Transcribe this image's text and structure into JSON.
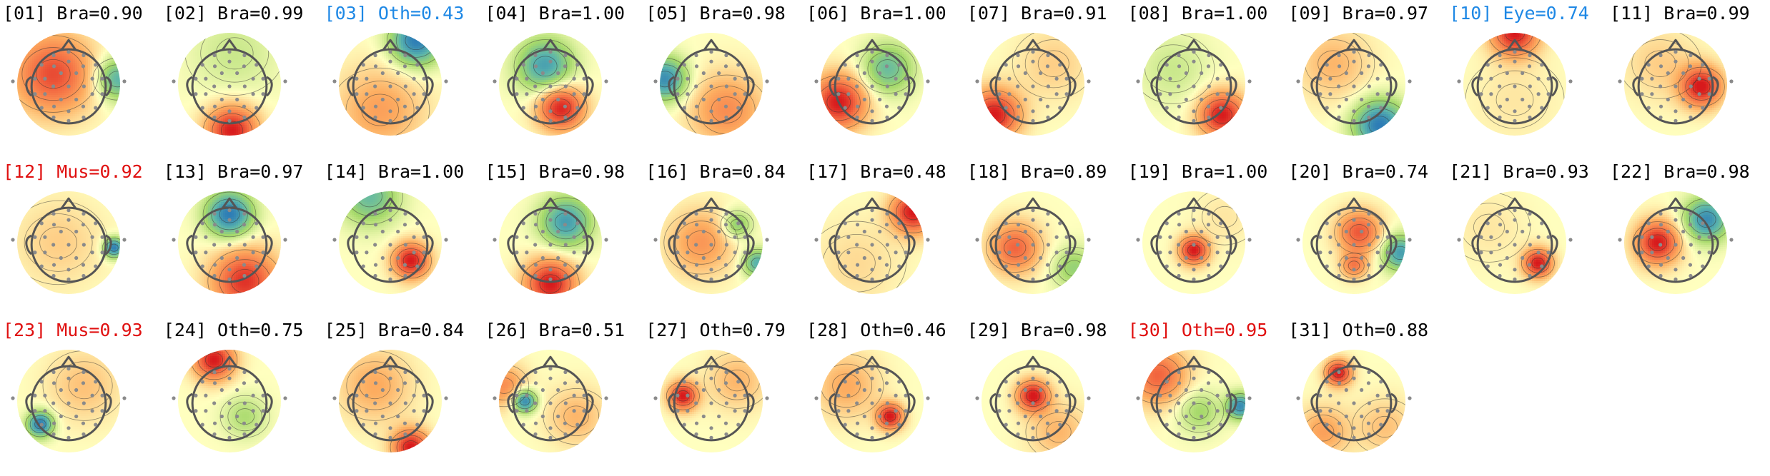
{
  "figure_title": "",
  "colors": {
    "text_default": "#000000",
    "text_flag_red": "#e01010",
    "text_flag_blue": "#1e88e5",
    "head_outline": "#555555",
    "electrode": "#8a8a8a",
    "colormap": [
      "#2c7bb6",
      "#5ab4ac",
      "#a6d96a",
      "#ffffbf",
      "#fdae61",
      "#f46d43",
      "#d7191c"
    ]
  },
  "chart_data": {
    "type": "heatmap",
    "title": "",
    "xlabel": "",
    "ylabel": "",
    "label_format": "[NN] Class=prob",
    "components": [
      {
        "id": "01",
        "label": "[01] Bra=0.90",
        "cls": "Bra",
        "prob": 0.9,
        "flag": "none",
        "blobs": [
          [
            -0.3,
            -0.2,
            0.8,
            0.55
          ],
          [
            0.95,
            -0.1,
            -0.7,
            0.3
          ]
        ]
      },
      {
        "id": "02",
        "label": "[02] Bra=0.99",
        "cls": "Bra",
        "prob": 0.99,
        "flag": "none",
        "blobs": [
          [
            0.05,
            0.9,
            1.0,
            0.35
          ],
          [
            0.1,
            -0.6,
            -0.2,
            0.6
          ]
        ]
      },
      {
        "id": "03",
        "label": "[03] Oth=0.43",
        "cls": "Oth",
        "prob": 0.43,
        "flag": "blue",
        "blobs": [
          [
            0.5,
            -0.85,
            -1.0,
            0.35
          ],
          [
            -0.2,
            0.5,
            0.4,
            0.6
          ]
        ]
      },
      {
        "id": "04",
        "label": "[04] Bra=1.00",
        "cls": "Bra",
        "prob": 1.0,
        "flag": "none",
        "blobs": [
          [
            0.2,
            0.45,
            1.0,
            0.32
          ],
          [
            -0.1,
            -0.35,
            -0.8,
            0.38
          ]
        ]
      },
      {
        "id": "05",
        "label": "[05] Bra=0.98",
        "cls": "Bra",
        "prob": 0.98,
        "flag": "none",
        "blobs": [
          [
            -0.9,
            -0.1,
            -0.9,
            0.3
          ],
          [
            0.3,
            0.5,
            0.5,
            0.5
          ]
        ]
      },
      {
        "id": "06",
        "label": "[06] Bra=1.00",
        "cls": "Bra",
        "prob": 1.0,
        "flag": "none",
        "blobs": [
          [
            -0.65,
            0.35,
            1.0,
            0.38
          ],
          [
            0.3,
            -0.3,
            -0.6,
            0.35
          ]
        ]
      },
      {
        "id": "07",
        "label": "[07] Bra=0.91",
        "cls": "Bra",
        "prob": 0.91,
        "flag": "none",
        "blobs": [
          [
            -0.75,
            0.6,
            1.0,
            0.35
          ],
          [
            0.4,
            -0.4,
            0.2,
            0.5
          ]
        ]
      },
      {
        "id": "08",
        "label": "[08] Bra=1.00",
        "cls": "Bra",
        "prob": 1.0,
        "flag": "none",
        "blobs": [
          [
            0.55,
            0.6,
            1.0,
            0.32
          ],
          [
            -0.4,
            -0.3,
            -0.2,
            0.5
          ]
        ]
      },
      {
        "id": "09",
        "label": "[09] Bra=0.97",
        "cls": "Bra",
        "prob": 0.97,
        "flag": "none",
        "blobs": [
          [
            0.5,
            0.8,
            -1.0,
            0.35
          ],
          [
            -0.4,
            -0.4,
            0.3,
            0.5
          ]
        ]
      },
      {
        "id": "10",
        "label": "[10] Eye=0.74",
        "cls": "Eye",
        "prob": 0.74,
        "flag": "blue",
        "blobs": [
          [
            0.0,
            -1.0,
            1.0,
            0.32
          ],
          [
            0.0,
            0.3,
            0.1,
            0.6
          ]
        ]
      },
      {
        "id": "11",
        "label": "[11] Bra=0.99",
        "cls": "Bra",
        "prob": 0.99,
        "flag": "none",
        "blobs": [
          [
            0.5,
            0.05,
            1.0,
            0.28
          ],
          [
            -0.3,
            -0.4,
            0.2,
            0.5
          ]
        ]
      },
      {
        "id": "12",
        "label": "[12] Mus=0.92",
        "cls": "Mus",
        "prob": 0.92,
        "flag": "red",
        "blobs": [
          [
            0.88,
            0.1,
            -1.0,
            0.14
          ],
          [
            -0.2,
            0.0,
            0.2,
            0.6
          ]
        ]
      },
      {
        "id": "13",
        "label": "[13] Bra=0.97",
        "cls": "Bra",
        "prob": 0.97,
        "flag": "none",
        "blobs": [
          [
            0.0,
            -0.55,
            -1.0,
            0.32
          ],
          [
            0.3,
            0.75,
            0.9,
            0.45
          ]
        ]
      },
      {
        "id": "14",
        "label": "[14] Bra=1.00",
        "cls": "Bra",
        "prob": 1.0,
        "flag": "none",
        "blobs": [
          [
            0.4,
            0.35,
            1.0,
            0.25
          ],
          [
            -0.4,
            -0.9,
            -0.6,
            0.4
          ]
        ]
      },
      {
        "id": "15",
        "label": "[15] Bra=0.98",
        "cls": "Bra",
        "prob": 0.98,
        "flag": "none",
        "blobs": [
          [
            0.0,
            0.8,
            1.0,
            0.35
          ],
          [
            0.3,
            -0.4,
            -0.8,
            0.35
          ]
        ]
      },
      {
        "id": "16",
        "label": "[16] Bra=0.84",
        "cls": "Bra",
        "prob": 0.84,
        "flag": "none",
        "blobs": [
          [
            0.9,
            0.4,
            -0.7,
            0.2
          ],
          [
            -0.2,
            0.0,
            0.45,
            0.45
          ],
          [
            0.5,
            -0.35,
            -0.5,
            0.2
          ]
        ]
      },
      {
        "id": "17",
        "label": "[17] Bra=0.48",
        "cls": "Bra",
        "prob": 0.48,
        "flag": "none",
        "blobs": [
          [
            0.8,
            -0.6,
            1.0,
            0.3
          ],
          [
            -0.3,
            0.4,
            0.15,
            0.6
          ]
        ]
      },
      {
        "id": "18",
        "label": "[18] Bra=0.89",
        "cls": "Bra",
        "prob": 0.89,
        "flag": "none",
        "blobs": [
          [
            -0.35,
            0.1,
            0.7,
            0.35
          ],
          [
            0.8,
            0.5,
            -0.4,
            0.3
          ]
        ]
      },
      {
        "id": "19",
        "label": "[19] Bra=1.00",
        "cls": "Bra",
        "prob": 1.0,
        "flag": "none",
        "blobs": [
          [
            0.0,
            0.15,
            1.0,
            0.2
          ],
          [
            0.6,
            -0.5,
            0.1,
            0.4
          ]
        ]
      },
      {
        "id": "20",
        "label": "[20] Bra=0.74",
        "cls": "Bra",
        "prob": 0.74,
        "flag": "none",
        "blobs": [
          [
            0.1,
            -0.2,
            0.75,
            0.3
          ],
          [
            0.0,
            0.45,
            0.55,
            0.18
          ],
          [
            0.9,
            0.2,
            -0.8,
            0.25
          ]
        ]
      },
      {
        "id": "21",
        "label": "[21] Bra=0.93",
        "cls": "Bra",
        "prob": 0.93,
        "flag": "none",
        "blobs": [
          [
            0.45,
            0.4,
            1.0,
            0.2
          ],
          [
            -0.5,
            -0.3,
            0.1,
            0.5
          ]
        ]
      },
      {
        "id": "22",
        "label": "[22] Bra=0.98",
        "cls": "Bra",
        "prob": 0.98,
        "flag": "none",
        "blobs": [
          [
            -0.35,
            0.0,
            1.0,
            0.3
          ],
          [
            0.6,
            -0.45,
            -0.9,
            0.3
          ]
        ]
      },
      {
        "id": "23",
        "label": "[23] Mus=0.93",
        "cls": "Mus",
        "prob": 0.93,
        "flag": "red",
        "blobs": [
          [
            -0.55,
            0.45,
            -1.0,
            0.18
          ],
          [
            0.3,
            -0.3,
            0.25,
            0.5
          ]
        ]
      },
      {
        "id": "24",
        "label": "[24] Oth=0.75",
        "cls": "Oth",
        "prob": 0.75,
        "flag": "none",
        "blobs": [
          [
            -0.3,
            -0.8,
            1.0,
            0.28
          ],
          [
            0.3,
            0.3,
            -0.3,
            0.3
          ]
        ]
      },
      {
        "id": "25",
        "label": "[25] Bra=0.84",
        "cls": "Bra",
        "prob": 0.84,
        "flag": "none",
        "blobs": [
          [
            0.4,
            0.9,
            1.0,
            0.25
          ],
          [
            -0.3,
            -0.3,
            0.35,
            0.5
          ]
        ]
      },
      {
        "id": "26",
        "label": "[26] Bra=0.51",
        "cls": "Bra",
        "prob": 0.51,
        "flag": "none",
        "blobs": [
          [
            -0.5,
            0.0,
            -1.0,
            0.16
          ],
          [
            -0.9,
            -0.3,
            0.5,
            0.3
          ],
          [
            0.5,
            0.3,
            0.3,
            0.4
          ]
        ]
      },
      {
        "id": "27",
        "label": "[27] Oth=0.79",
        "cls": "Oth",
        "prob": 0.79,
        "flag": "none",
        "blobs": [
          [
            -0.55,
            -0.1,
            1.0,
            0.2
          ],
          [
            0.5,
            -0.4,
            0.3,
            0.4
          ]
        ]
      },
      {
        "id": "28",
        "label": "[28] Oth=0.46",
        "cls": "Oth",
        "prob": 0.46,
        "flag": "none",
        "blobs": [
          [
            0.35,
            0.3,
            1.0,
            0.18
          ],
          [
            -0.5,
            -0.3,
            0.35,
            0.45
          ]
        ]
      },
      {
        "id": "29",
        "label": "[29] Bra=0.98",
        "cls": "Bra",
        "prob": 0.98,
        "flag": "none",
        "blobs": [
          [
            0.0,
            -0.1,
            1.0,
            0.22
          ],
          [
            0.5,
            0.6,
            0.3,
            0.4
          ]
        ]
      },
      {
        "id": "30",
        "label": "[30] Oth=0.95",
        "cls": "Oth",
        "prob": 0.95,
        "flag": "red",
        "blobs": [
          [
            -0.7,
            -0.5,
            0.7,
            0.4
          ],
          [
            0.9,
            0.1,
            -0.9,
            0.18
          ],
          [
            0.1,
            0.2,
            -0.35,
            0.3
          ]
        ]
      },
      {
        "id": "31",
        "label": "[31] Oth=0.88",
        "cls": "Oth",
        "prob": 0.88,
        "flag": "none",
        "blobs": [
          [
            -0.3,
            -0.55,
            1.0,
            0.18
          ],
          [
            -0.6,
            0.6,
            0.4,
            0.35
          ],
          [
            0.6,
            0.5,
            0.25,
            0.4
          ]
        ]
      }
    ]
  }
}
